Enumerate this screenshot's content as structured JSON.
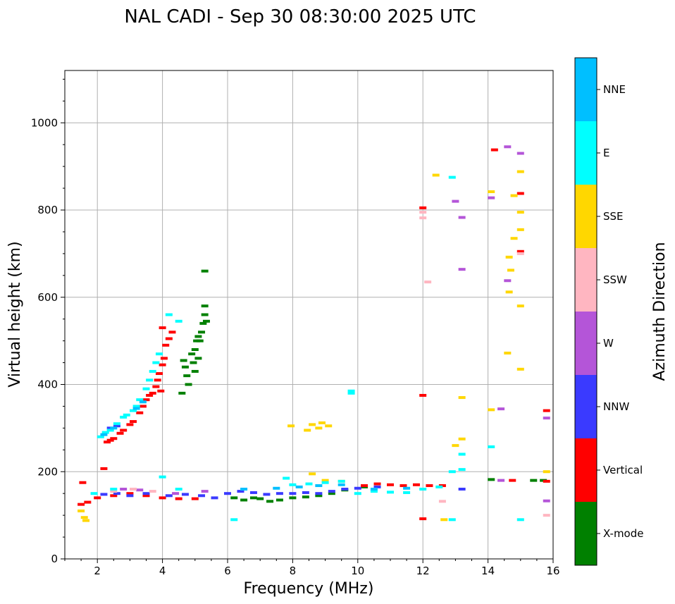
{
  "chart_data": {
    "type": "scatter",
    "title": "NAL CADI - Sep 30 08:30:00 2025 UTC",
    "xlabel": "Frequency (MHz)",
    "ylabel": "Virtual height (km)",
    "xlim": [
      1,
      16
    ],
    "ylim": [
      0,
      1120
    ],
    "xticks": [
      2,
      4,
      6,
      8,
      10,
      12,
      14,
      16
    ],
    "yticks": [
      0,
      200,
      400,
      600,
      800,
      1000
    ],
    "grid": true,
    "colorbar": {
      "label": "Azimuth Direction",
      "categories": [
        {
          "name": "X-mode",
          "color": "#008000"
        },
        {
          "name": "Vertical",
          "color": "#ff0000"
        },
        {
          "name": "NNW",
          "color": "#3a3aff"
        },
        {
          "name": "W",
          "color": "#b455d8"
        },
        {
          "name": "SSW",
          "color": "#ffb6c1"
        },
        {
          "name": "SSE",
          "color": "#ffd700"
        },
        {
          "name": "E",
          "color": "#00ffff"
        },
        {
          "name": "NNE",
          "color": "#00bfff"
        }
      ]
    },
    "series": [
      {
        "name": "X-mode",
        "points": [
          [
            4.65,
            455
          ],
          [
            4.7,
            440
          ],
          [
            4.75,
            420
          ],
          [
            4.8,
            400
          ],
          [
            4.9,
            470
          ],
          [
            4.95,
            450
          ],
          [
            5.0,
            480
          ],
          [
            5.05,
            500
          ],
          [
            5.1,
            510
          ],
          [
            5.15,
            500
          ],
          [
            5.2,
            520
          ],
          [
            5.25,
            540
          ],
          [
            5.3,
            560
          ],
          [
            5.35,
            545
          ],
          [
            5.3,
            580
          ],
          [
            5.3,
            660
          ],
          [
            4.6,
            380
          ],
          [
            5.0,
            430
          ],
          [
            5.1,
            460
          ],
          [
            6.2,
            140
          ],
          [
            6.5,
            135
          ],
          [
            6.8,
            140
          ],
          [
            7.0,
            138
          ],
          [
            7.3,
            132
          ],
          [
            7.6,
            135
          ],
          [
            8.0,
            140
          ],
          [
            8.4,
            142
          ],
          [
            8.8,
            145
          ],
          [
            9.2,
            150
          ],
          [
            9.6,
            158
          ],
          [
            10.2,
            165
          ],
          [
            14.1,
            182
          ],
          [
            15.4,
            180
          ],
          [
            15.7,
            180
          ]
        ]
      },
      {
        "name": "Vertical",
        "points": [
          [
            2.3,
            268
          ],
          [
            2.4,
            272
          ],
          [
            2.5,
            276
          ],
          [
            2.7,
            288
          ],
          [
            2.8,
            295
          ],
          [
            3.0,
            308
          ],
          [
            3.1,
            315
          ],
          [
            3.3,
            335
          ],
          [
            3.4,
            350
          ],
          [
            3.5,
            365
          ],
          [
            3.6,
            375
          ],
          [
            3.7,
            380
          ],
          [
            3.8,
            395
          ],
          [
            3.85,
            410
          ],
          [
            3.9,
            425
          ],
          [
            4.0,
            445
          ],
          [
            4.05,
            460
          ],
          [
            4.1,
            490
          ],
          [
            4.2,
            505
          ],
          [
            4.3,
            520
          ],
          [
            4.0,
            530
          ],
          [
            3.95,
            385
          ],
          [
            1.5,
            125
          ],
          [
            1.7,
            130
          ],
          [
            2.0,
            140
          ],
          [
            2.5,
            145
          ],
          [
            3.0,
            150
          ],
          [
            3.5,
            145
          ],
          [
            4.0,
            140
          ],
          [
            4.5,
            138
          ],
          [
            5.0,
            138
          ],
          [
            10.2,
            168
          ],
          [
            10.6,
            172
          ],
          [
            11.0,
            170
          ],
          [
            11.4,
            168
          ],
          [
            11.8,
            170
          ],
          [
            12.2,
            168
          ],
          [
            12.6,
            168
          ],
          [
            12.0,
            92
          ],
          [
            12.0,
            805
          ],
          [
            12.0,
            375
          ],
          [
            14.2,
            938
          ],
          [
            14.75,
            180
          ],
          [
            15.0,
            705
          ],
          [
            15.0,
            838
          ],
          [
            15.8,
            340
          ],
          [
            15.8,
            178
          ],
          [
            2.2,
            207
          ],
          [
            1.55,
            175
          ]
        ]
      },
      {
        "name": "NNW",
        "points": [
          [
            2.2,
            148
          ],
          [
            2.6,
            150
          ],
          [
            3.0,
            145
          ],
          [
            3.5,
            150
          ],
          [
            4.2,
            145
          ],
          [
            4.7,
            148
          ],
          [
            5.2,
            145
          ],
          [
            5.6,
            140
          ],
          [
            6.0,
            150
          ],
          [
            6.4,
            155
          ],
          [
            6.8,
            152
          ],
          [
            7.2,
            148
          ],
          [
            7.6,
            150
          ],
          [
            8.0,
            150
          ],
          [
            8.4,
            152
          ],
          [
            8.8,
            150
          ],
          [
            9.2,
            155
          ],
          [
            9.6,
            160
          ],
          [
            10.0,
            162
          ],
          [
            10.6,
            165
          ],
          [
            2.4,
            300
          ],
          [
            2.6,
            305
          ],
          [
            13.2,
            160
          ]
        ]
      },
      {
        "name": "W",
        "points": [
          [
            2.8,
            160
          ],
          [
            3.3,
            158
          ],
          [
            4.4,
            150
          ],
          [
            5.3,
            155
          ],
          [
            14.6,
            945
          ],
          [
            14.1,
            828
          ],
          [
            13.2,
            783
          ],
          [
            13.2,
            664
          ],
          [
            14.6,
            638
          ],
          [
            14.4,
            344
          ],
          [
            15.0,
            930
          ],
          [
            15.8,
            323
          ],
          [
            15.8,
            133
          ],
          [
            14.4,
            180
          ],
          [
            13.0,
            820
          ]
        ]
      },
      {
        "name": "SSW",
        "points": [
          [
            2.5,
            155
          ],
          [
            3.1,
            160
          ],
          [
            3.7,
            155
          ],
          [
            12.0,
            795
          ],
          [
            12.0,
            782
          ],
          [
            12.15,
            635
          ],
          [
            15.0,
            700
          ],
          [
            12.6,
            132
          ],
          [
            15.8,
            100
          ]
        ]
      },
      {
        "name": "SSE",
        "points": [
          [
            1.5,
            110
          ],
          [
            1.6,
            95
          ],
          [
            1.65,
            88
          ],
          [
            7.95,
            305
          ],
          [
            8.45,
            295
          ],
          [
            8.6,
            308
          ],
          [
            8.8,
            300
          ],
          [
            8.9,
            312
          ],
          [
            9.1,
            305
          ],
          [
            8.6,
            195
          ],
          [
            9.0,
            180
          ],
          [
            9.5,
            178
          ],
          [
            12.4,
            880
          ],
          [
            14.1,
            842
          ],
          [
            14.8,
            833
          ],
          [
            15.0,
            888
          ],
          [
            15.0,
            795
          ],
          [
            15.0,
            755
          ],
          [
            14.8,
            735
          ],
          [
            14.65,
            692
          ],
          [
            14.7,
            662
          ],
          [
            14.65,
            612
          ],
          [
            15.0,
            580
          ],
          [
            14.6,
            472
          ],
          [
            15.0,
            435
          ],
          [
            13.2,
            370
          ],
          [
            13.2,
            275
          ],
          [
            13.0,
            260
          ],
          [
            14.1,
            342
          ],
          [
            12.65,
            90
          ],
          [
            15.8,
            200
          ]
        ]
      },
      {
        "name": "E",
        "points": [
          [
            2.1,
            280
          ],
          [
            2.25,
            290
          ],
          [
            2.4,
            295
          ],
          [
            2.6,
            310
          ],
          [
            2.8,
            325
          ],
          [
            2.9,
            330
          ],
          [
            3.1,
            340
          ],
          [
            3.2,
            350
          ],
          [
            3.3,
            365
          ],
          [
            3.5,
            390
          ],
          [
            3.6,
            410
          ],
          [
            3.7,
            430
          ],
          [
            3.8,
            450
          ],
          [
            4.2,
            560
          ],
          [
            4.5,
            545
          ],
          [
            3.9,
            470
          ],
          [
            1.9,
            150
          ],
          [
            2.5,
            160
          ],
          [
            4.0,
            188
          ],
          [
            4.5,
            160
          ],
          [
            6.2,
            90
          ],
          [
            7.8,
            185
          ],
          [
            8.0,
            170
          ],
          [
            8.5,
            172
          ],
          [
            9.0,
            175
          ],
          [
            9.5,
            178
          ],
          [
            10.0,
            150
          ],
          [
            10.5,
            155
          ],
          [
            11.0,
            153
          ],
          [
            11.5,
            152
          ],
          [
            12.0,
            160
          ],
          [
            12.5,
            165
          ],
          [
            12.9,
            200
          ],
          [
            13.2,
            205
          ],
          [
            13.2,
            240
          ],
          [
            12.9,
            875
          ],
          [
            14.1,
            257
          ],
          [
            12.9,
            90
          ],
          [
            15.0,
            90
          ],
          [
            9.8,
            380
          ],
          [
            9.8,
            385
          ]
        ]
      },
      {
        "name": "NNE",
        "points": [
          [
            2.2,
            285
          ],
          [
            2.5,
            300
          ],
          [
            3.2,
            345
          ],
          [
            3.4,
            360
          ],
          [
            6.5,
            160
          ],
          [
            7.5,
            162
          ],
          [
            8.2,
            165
          ],
          [
            8.8,
            168
          ],
          [
            9.5,
            170
          ],
          [
            10.5,
            160
          ],
          [
            11.5,
            162
          ]
        ]
      }
    ]
  }
}
